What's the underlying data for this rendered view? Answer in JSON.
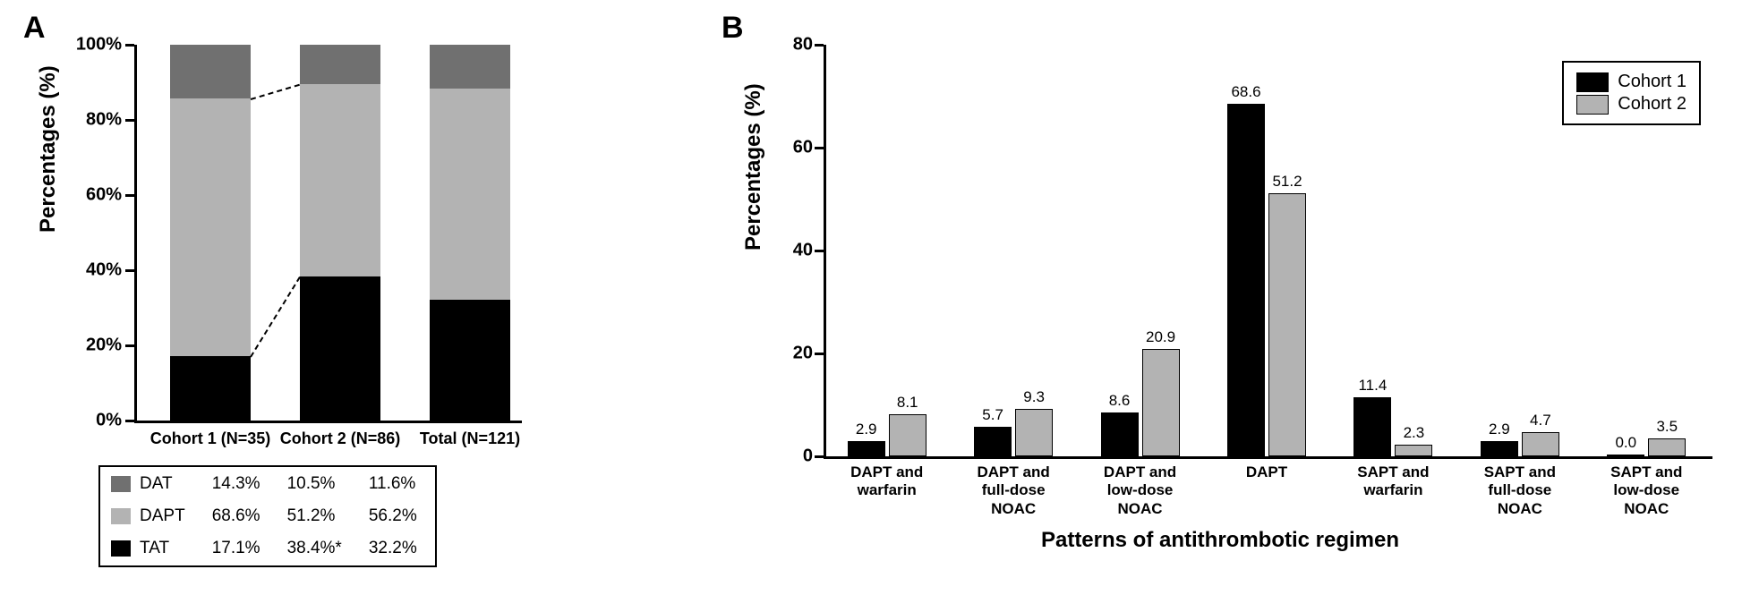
{
  "colors": {
    "tat": "#000000",
    "dapt": "#b3b3b3",
    "dat": "#707070",
    "c1": "#000000",
    "c2": "#b3b3b3",
    "axis": "#000000",
    "bg": "#ffffff"
  },
  "panelA": {
    "label": "A",
    "ytitle": "Percentages (%)",
    "ylim": [
      0,
      100
    ],
    "ytick_step": 20,
    "yticklabels": [
      "0%",
      "20%",
      "40%",
      "60%",
      "80%",
      "100%"
    ],
    "categories": [
      "Cohort 1 (N=35)",
      "Cohort 2 (N=86)",
      "Total (N=121)"
    ],
    "stacks": [
      {
        "TAT": 17.1,
        "DAPT": 68.6,
        "DAT": 14.3
      },
      {
        "TAT": 38.4,
        "DAPT": 51.2,
        "DAT": 10.5
      },
      {
        "TAT": 32.2,
        "DAPT": 56.2,
        "DAT": 11.6
      }
    ],
    "legend_rows": [
      {
        "key": "DAT",
        "color": "dat",
        "vals": [
          "14.3%",
          "10.5%",
          "11.6%"
        ]
      },
      {
        "key": "DAPT",
        "color": "dapt",
        "vals": [
          "68.6%",
          "51.2%",
          "56.2%"
        ]
      },
      {
        "key": "TAT",
        "color": "tat",
        "vals": [
          "17.1%",
          "38.4%*",
          "32.2%"
        ]
      }
    ]
  },
  "panelB": {
    "label": "B",
    "ytitle": "Percentages (%)",
    "xtitle": "Patterns of antithrombotic regimen",
    "ylim": [
      0,
      80
    ],
    "ytick_step": 20,
    "yticklabels": [
      "0",
      "20",
      "40",
      "60",
      "80"
    ],
    "legend": [
      {
        "label": "Cohort 1",
        "color": "c1"
      },
      {
        "label": "Cohort 2",
        "color": "c2"
      }
    ],
    "categories": [
      "DAPT and warfarin",
      "DAPT and full-dose NOAC",
      "DAPT and low-dose NOAC",
      "DAPT",
      "SAPT and warfarin",
      "SAPT and full-dose NOAC",
      "SAPT and low-dose NOAC"
    ],
    "series": {
      "c1": [
        2.9,
        5.7,
        8.6,
        68.6,
        11.4,
        2.9,
        0.0
      ],
      "c2": [
        8.1,
        9.3,
        20.9,
        51.2,
        2.3,
        4.7,
        3.5
      ]
    }
  }
}
